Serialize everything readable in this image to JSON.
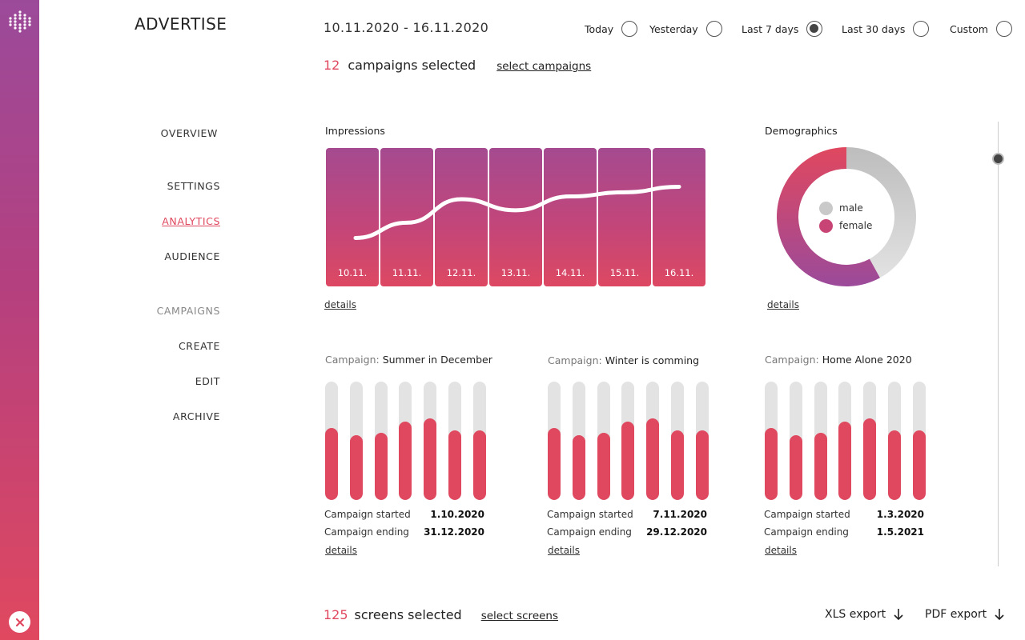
{
  "app": {
    "title": "ADVERTISE"
  },
  "nav": {
    "overview": "OVERVIEW",
    "settings": "SETTINGS",
    "analytics": "ANALYTICS",
    "audience": "AUDIENCE",
    "campaigns": "CAMPAIGNS",
    "create": "CREATE",
    "edit": "EDIT",
    "archive": "ARCHIVE"
  },
  "header": {
    "date_range": "10.11.2020 - 16.11.2020",
    "periods": [
      {
        "label": "Today",
        "checked": false
      },
      {
        "label": "Yesterday",
        "checked": false
      },
      {
        "label": "Last 7 days",
        "checked": true
      },
      {
        "label": "Last 30 days",
        "checked": false
      },
      {
        "label": "Custom",
        "checked": false
      }
    ]
  },
  "campaigns_selected": {
    "count": "12",
    "label": "campaigns selected",
    "link": "select campaigns"
  },
  "impressions": {
    "title": "Impressions",
    "details": "details",
    "days": [
      "10.11.",
      "11.11.",
      "12.11.",
      "13.11.",
      "14.11.",
      "15.11.",
      "16.11."
    ],
    "values": [
      0.35,
      0.46,
      0.63,
      0.55,
      0.65,
      0.68,
      0.72
    ]
  },
  "demographics": {
    "title": "Demographics",
    "details": "details",
    "legend": {
      "male": "male",
      "female": "female"
    },
    "male_share": 0.42,
    "female_share": 0.58,
    "colors": {
      "male": "#c9c9c9",
      "female": "#e0485f"
    }
  },
  "campaign_prefix": "Campaign:",
  "campaigns": [
    {
      "name": "Summer in December",
      "started_label": "Campaign started",
      "started": "1.10.2020",
      "ending_label": "Campaign ending",
      "ending": "31.12.2020",
      "details": "details",
      "levels": [
        0.61,
        0.55,
        0.57,
        0.66,
        0.69,
        0.59,
        0.59
      ]
    },
    {
      "name": "Winter is comming",
      "started_label": "Campaign started",
      "started": "7.11.2020",
      "ending_label": "Campaign ending",
      "ending": "29.12.2020",
      "details": "details",
      "levels": [
        0.61,
        0.55,
        0.57,
        0.66,
        0.69,
        0.59,
        0.59
      ]
    },
    {
      "name": "Home Alone 2020",
      "started_label": "Campaign started",
      "started": "1.3.2020",
      "ending_label": "Campaign ending",
      "ending": "1.5.2021",
      "details": "details",
      "levels": [
        0.61,
        0.55,
        0.57,
        0.66,
        0.69,
        0.59,
        0.59
      ]
    }
  ],
  "screens_selected": {
    "count": "125",
    "label": "screens selected",
    "link": "select screens"
  },
  "exports": {
    "xls": "XLS export",
    "pdf": "PDF export"
  },
  "colors": {
    "accent": "#e0485f",
    "purple": "#9b4a9a"
  }
}
